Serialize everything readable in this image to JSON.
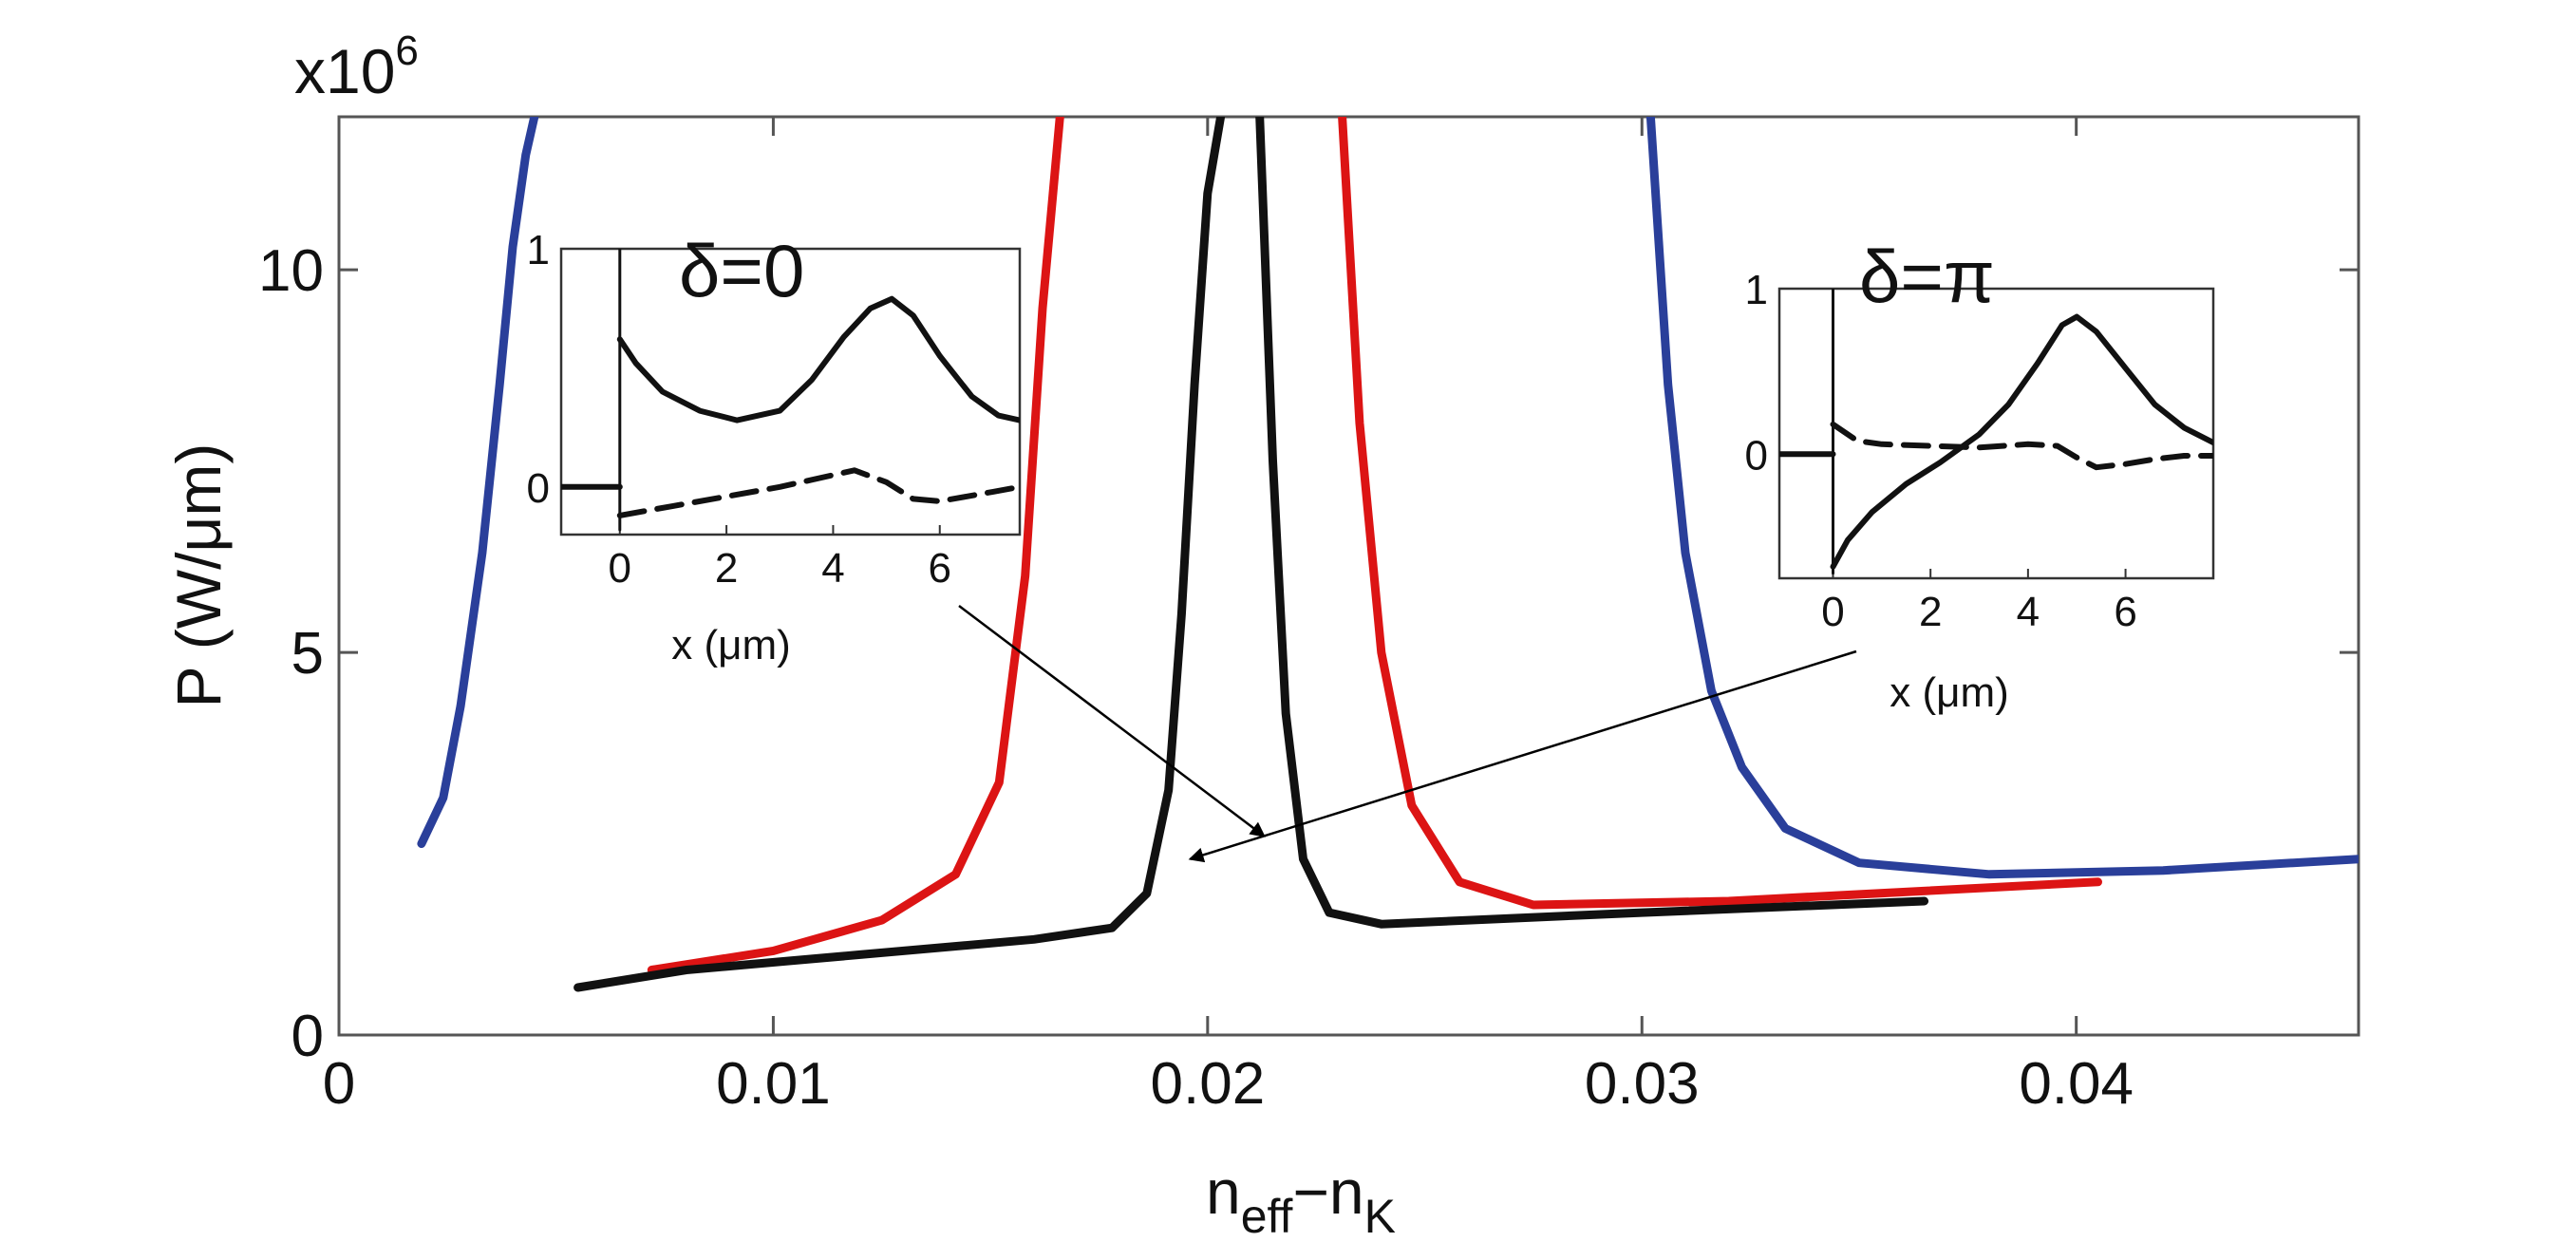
{
  "chart_data": {
    "type": "line",
    "main": {
      "xlabel_base": "n",
      "xlabel_sub1": "eff",
      "xlabel_mid": "−n",
      "xlabel_sub2": "K",
      "ylabel": "P (W/μm)",
      "y_multiplier_base": "x10",
      "y_multiplier_exp": "6",
      "xlim": [
        0,
        0.0465
      ],
      "ylim": [
        0,
        12
      ],
      "xticks": [
        0,
        0.01,
        0.02,
        0.03,
        0.04
      ],
      "xtick_labels": [
        "0",
        "0.01",
        "0.02",
        "0.03",
        "0.04"
      ],
      "yticks": [
        0,
        5,
        10
      ],
      "ytick_labels": [
        "0",
        "5",
        "10"
      ],
      "series": [
        {
          "name": "blue-left",
          "color": "#2a3f9a",
          "x": [
            0.0019,
            0.0024,
            0.0028,
            0.0033,
            0.0037,
            0.004,
            0.0043,
            0.0045
          ],
          "y": [
            2.5,
            3.1,
            4.3,
            6.3,
            8.5,
            10.3,
            11.5,
            12.0
          ]
        },
        {
          "name": "blue-right",
          "color": "#2a3f9a",
          "x": [
            0.0302,
            0.0306,
            0.031,
            0.0316,
            0.0323,
            0.0333,
            0.035,
            0.038,
            0.042,
            0.0465
          ],
          "y": [
            12.0,
            8.5,
            6.3,
            4.5,
            3.5,
            2.7,
            2.25,
            2.1,
            2.15,
            2.3
          ]
        },
        {
          "name": "red-left",
          "color": "#dc1414",
          "x": [
            0.0072,
            0.01,
            0.0125,
            0.0142,
            0.0152,
            0.0158,
            0.0162,
            0.0166
          ],
          "y": [
            0.85,
            1.1,
            1.5,
            2.1,
            3.3,
            6.0,
            9.5,
            12.0
          ]
        },
        {
          "name": "red-right",
          "color": "#dc1414",
          "x": [
            0.0231,
            0.0235,
            0.024,
            0.0247,
            0.0258,
            0.0275,
            0.032,
            0.0405
          ],
          "y": [
            12.0,
            8.0,
            5.0,
            3.0,
            2.0,
            1.7,
            1.75,
            2.0
          ]
        },
        {
          "name": "black-left",
          "color": "#111111",
          "x": [
            0.0055,
            0.008,
            0.012,
            0.016,
            0.0178,
            0.0186,
            0.0191,
            0.0194,
            0.0197,
            0.02,
            0.0203
          ],
          "y": [
            0.62,
            0.85,
            1.05,
            1.25,
            1.4,
            1.85,
            3.2,
            5.5,
            8.5,
            11.0,
            12.0
          ]
        },
        {
          "name": "black-right",
          "color": "#111111",
          "x": [
            0.0212,
            0.0215,
            0.0218,
            0.0222,
            0.0228,
            0.024,
            0.03,
            0.0365
          ],
          "y": [
            12.0,
            7.5,
            4.2,
            2.3,
            1.6,
            1.45,
            1.6,
            1.75
          ]
        }
      ]
    },
    "insets": [
      {
        "title": "δ=0",
        "xlabel": "x (μm)",
        "xlim": [
          -1.1,
          7.5
        ],
        "ylim": [
          -0.2,
          1.0
        ],
        "xticks": [
          0,
          2,
          4,
          6
        ],
        "xtick_labels": [
          "0",
          "2",
          "4",
          "6"
        ],
        "yticks": [
          0,
          1
        ],
        "ytick_labels": [
          "0",
          "1"
        ],
        "arrow_target": [
          0.0213,
          2.6
        ],
        "series": [
          {
            "name": "solid-spike",
            "style": "solid",
            "x": [
              0,
              0
            ],
            "y": [
              -0.18,
              1.0
            ]
          },
          {
            "name": "solid-left",
            "style": "solid",
            "x": [
              -1.1,
              0
            ],
            "y": [
              0,
              0
            ]
          },
          {
            "name": "solid",
            "style": "solid",
            "x": [
              0,
              0.3,
              0.8,
              1.5,
              2.2,
              3.0,
              3.6,
              4.2,
              4.7,
              5.1,
              5.5,
              6.0,
              6.6,
              7.1,
              7.5
            ],
            "y": [
              0.62,
              0.52,
              0.4,
              0.32,
              0.28,
              0.32,
              0.45,
              0.63,
              0.75,
              0.79,
              0.72,
              0.55,
              0.38,
              0.3,
              0.28
            ]
          },
          {
            "name": "dashed",
            "style": "dashed",
            "x": [
              0,
              1,
              2,
              3,
              4,
              4.4,
              5,
              5.5,
              6,
              6.5,
              7,
              7.5
            ],
            "y": [
              -0.12,
              -0.08,
              -0.04,
              0.0,
              0.05,
              0.07,
              0.02,
              -0.05,
              -0.06,
              -0.04,
              -0.02,
              0.0
            ]
          }
        ]
      },
      {
        "title": "δ=π",
        "xlabel": "x (μm)",
        "xlim": [
          -1.1,
          7.8
        ],
        "ylim": [
          -0.75,
          1.0
        ],
        "xticks": [
          0,
          2,
          4,
          6
        ],
        "xtick_labels": [
          "0",
          "2",
          "4",
          "6"
        ],
        "yticks": [
          0,
          1
        ],
        "ytick_labels": [
          "0",
          "1"
        ],
        "arrow_target": [
          0.0196,
          2.3
        ],
        "series": [
          {
            "name": "solid-spike",
            "style": "solid",
            "x": [
              0,
              0
            ],
            "y": [
              -0.72,
              1.0
            ]
          },
          {
            "name": "solid-left",
            "style": "solid",
            "x": [
              -1.1,
              0
            ],
            "y": [
              0,
              0
            ]
          },
          {
            "name": "solid",
            "style": "solid",
            "x": [
              0,
              0.3,
              0.8,
              1.5,
              2.2,
              3.0,
              3.6,
              4.2,
              4.7,
              5.0,
              5.4,
              6.0,
              6.6,
              7.2,
              7.8
            ],
            "y": [
              -0.68,
              -0.52,
              -0.35,
              -0.18,
              -0.05,
              0.12,
              0.3,
              0.55,
              0.78,
              0.83,
              0.74,
              0.52,
              0.3,
              0.16,
              0.07
            ]
          },
          {
            "name": "dashed",
            "style": "dashed",
            "x": [
              0,
              0.5,
              1,
              2,
              3,
              4,
              4.6,
              5,
              5.4,
              6,
              6.6,
              7.2,
              7.8
            ],
            "y": [
              0.18,
              0.08,
              0.06,
              0.05,
              0.04,
              0.06,
              0.05,
              -0.02,
              -0.08,
              -0.06,
              -0.03,
              -0.01,
              -0.01
            ]
          }
        ]
      }
    ]
  }
}
